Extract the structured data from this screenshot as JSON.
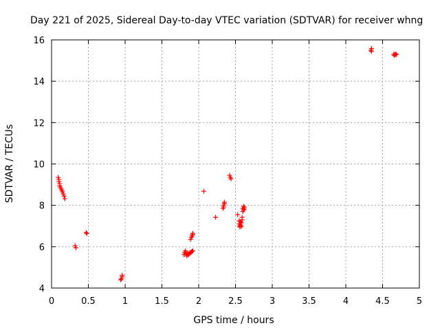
{
  "chart_data": {
    "type": "scatter",
    "title": "Day 221 of 2025, Sidereal Day-to-day VTEC variation (SDTVAR) for receiver whng",
    "xlabel": "GPS time / hours",
    "ylabel": "SDTVAR / TECUs",
    "xlim": [
      0,
      5
    ],
    "ylim": [
      4,
      16
    ],
    "xticks": [
      0,
      0.5,
      1,
      1.5,
      2,
      2.5,
      3,
      3.5,
      4,
      4.5,
      5
    ],
    "xtick_labels": [
      "0",
      "0.5",
      "1",
      "1.5",
      "2",
      "2.5",
      "3",
      "3.5",
      "4",
      "4.5",
      "5"
    ],
    "yticks": [
      4,
      6,
      8,
      10,
      12,
      14,
      16
    ],
    "ytick_labels": [
      "4",
      "6",
      "8",
      "10",
      "12",
      "14",
      "16"
    ],
    "grid": true,
    "marker": "+",
    "color": "#ff0000",
    "series": [
      {
        "name": "SDTVAR",
        "points": [
          [
            0.09,
            9.35
          ],
          [
            0.1,
            9.25
          ],
          [
            0.1,
            9.15
          ],
          [
            0.11,
            9.05
          ],
          [
            0.11,
            8.95
          ],
          [
            0.12,
            8.88
          ],
          [
            0.13,
            8.8
          ],
          [
            0.14,
            8.72
          ],
          [
            0.15,
            8.65
          ],
          [
            0.16,
            8.55
          ],
          [
            0.17,
            8.45
          ],
          [
            0.18,
            8.32
          ],
          [
            0.32,
            6.05
          ],
          [
            0.33,
            5.95
          ],
          [
            0.47,
            6.68
          ],
          [
            0.48,
            6.64
          ],
          [
            0.94,
            4.4
          ],
          [
            0.95,
            4.45
          ],
          [
            0.96,
            4.55
          ],
          [
            0.96,
            4.62
          ],
          [
            1.8,
            5.62
          ],
          [
            1.81,
            5.72
          ],
          [
            1.82,
            5.8
          ],
          [
            1.83,
            5.66
          ],
          [
            1.84,
            5.55
          ],
          [
            1.85,
            5.7
          ],
          [
            1.86,
            5.6
          ],
          [
            1.87,
            5.66
          ],
          [
            1.88,
            5.72
          ],
          [
            1.89,
            5.7
          ],
          [
            1.9,
            5.74
          ],
          [
            1.91,
            5.78
          ],
          [
            1.92,
            5.8
          ],
          [
            1.89,
            6.35
          ],
          [
            1.9,
            6.45
          ],
          [
            1.91,
            6.52
          ],
          [
            1.92,
            6.58
          ],
          [
            1.92,
            6.65
          ],
          [
            2.07,
            8.68
          ],
          [
            2.23,
            7.42
          ],
          [
            2.33,
            7.85
          ],
          [
            2.34,
            7.92
          ],
          [
            2.34,
            8.0
          ],
          [
            2.35,
            8.08
          ],
          [
            2.35,
            8.15
          ],
          [
            2.42,
            9.45
          ],
          [
            2.43,
            9.35
          ],
          [
            2.44,
            9.28
          ],
          [
            2.53,
            7.55
          ],
          [
            2.55,
            7.25
          ],
          [
            2.55,
            7.1
          ],
          [
            2.56,
            7.0
          ],
          [
            2.56,
            6.95
          ],
          [
            2.57,
            7.2
          ],
          [
            2.57,
            7.05
          ],
          [
            2.58,
            7.15
          ],
          [
            2.58,
            6.98
          ],
          [
            2.59,
            7.3
          ],
          [
            2.59,
            7.42
          ],
          [
            2.6,
            7.7
          ],
          [
            2.6,
            7.85
          ],
          [
            2.61,
            7.95
          ],
          [
            2.61,
            7.78
          ],
          [
            2.62,
            7.82
          ],
          [
            2.62,
            7.9
          ],
          [
            4.34,
            15.5
          ],
          [
            4.35,
            15.58
          ],
          [
            4.35,
            15.45
          ],
          [
            4.65,
            15.3
          ],
          [
            4.66,
            15.25
          ],
          [
            4.67,
            15.32
          ],
          [
            4.68,
            15.28
          ],
          [
            4.69,
            15.3
          ]
        ]
      }
    ]
  }
}
